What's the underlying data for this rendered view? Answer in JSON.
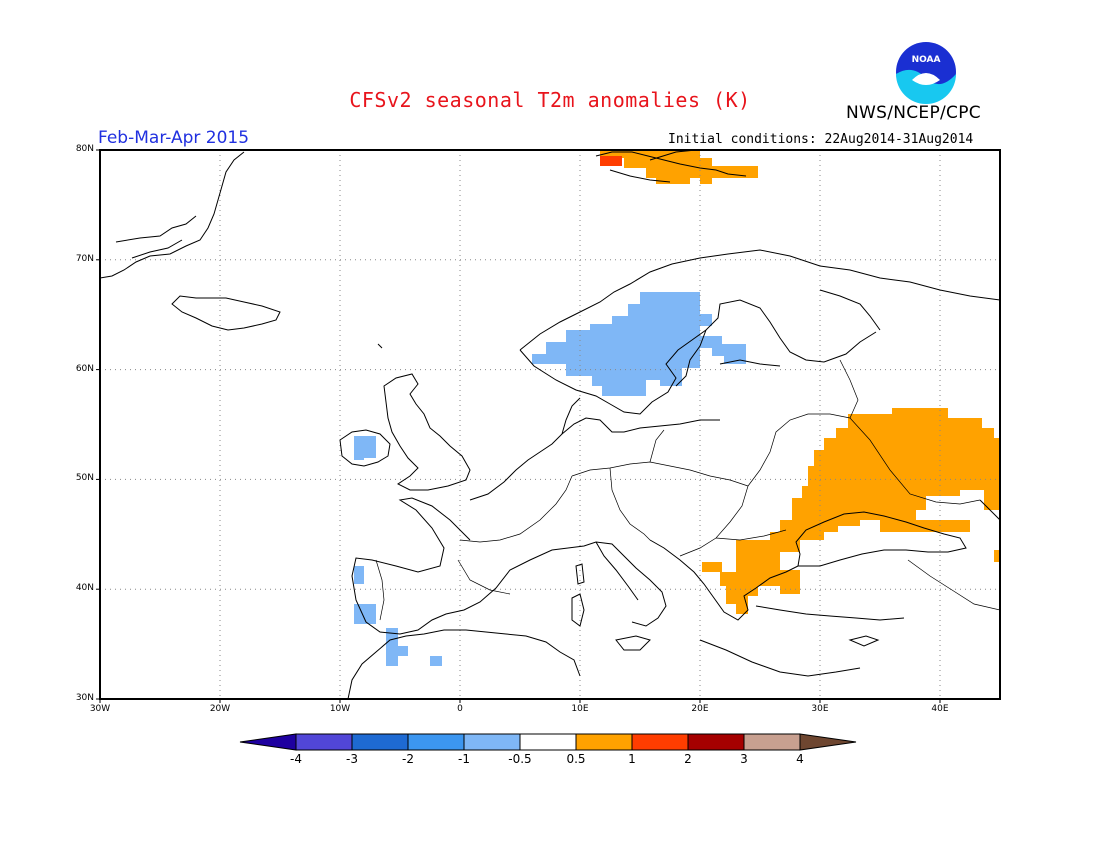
{
  "title": "CFSv2 seasonal T2m anomalies (K)",
  "agency": "NWS/NCEP/CPC",
  "period": "Feb-Mar-Apr 2015",
  "initial_conditions": "Initial conditions: 22Aug2014-31Aug2014",
  "logo_text": "NOAA",
  "map": {
    "lon_range": [
      -30,
      45
    ],
    "lat_range": [
      30,
      80
    ],
    "lon_ticks": [
      "30W",
      "20W",
      "10W",
      "0",
      "10E",
      "20E",
      "30E",
      "40E"
    ],
    "lat_ticks": [
      "30N",
      "40N",
      "50N",
      "60N",
      "70N",
      "80N"
    ],
    "gridlines": "dotted",
    "anomaly_regions": [
      {
        "name": "scandinavia",
        "anomaly_bin": "-1 to -0.5",
        "color": "#7fb7f6"
      },
      {
        "name": "ireland",
        "anomaly_bin": "-1 to -0.5",
        "color": "#7fb7f6"
      },
      {
        "name": "iberia-west",
        "anomaly_bin": "-1 to -0.5",
        "color": "#7fb7f6"
      },
      {
        "name": "gibraltar",
        "anomaly_bin": "-1 to -0.5",
        "color": "#7fb7f6"
      },
      {
        "name": "svalbard",
        "anomaly_bin": "0.5 to 1",
        "color": "#ffa200"
      },
      {
        "name": "svalbard-west",
        "anomaly_bin": "1 to 2",
        "color": "#ff3d00"
      },
      {
        "name": "ukraine-russia",
        "anomaly_bin": "0.5 to 1",
        "color": "#ffa200"
      },
      {
        "name": "balkans-turkey",
        "anomaly_bin": "0.5 to 1",
        "color": "#ffa200"
      }
    ]
  },
  "colorbar": {
    "labels": [
      "-4",
      "-3",
      "-2",
      "-1",
      "-0.5",
      "0.5",
      "1",
      "2",
      "3",
      "4"
    ],
    "colors": [
      "#1e00a0",
      "#5146d7",
      "#1e6ad2",
      "#3c96f0",
      "#7fb7f6",
      "#ffffff",
      "#ffa200",
      "#ff3d00",
      "#a50000",
      "#c8a090",
      "#6e4630"
    ]
  }
}
